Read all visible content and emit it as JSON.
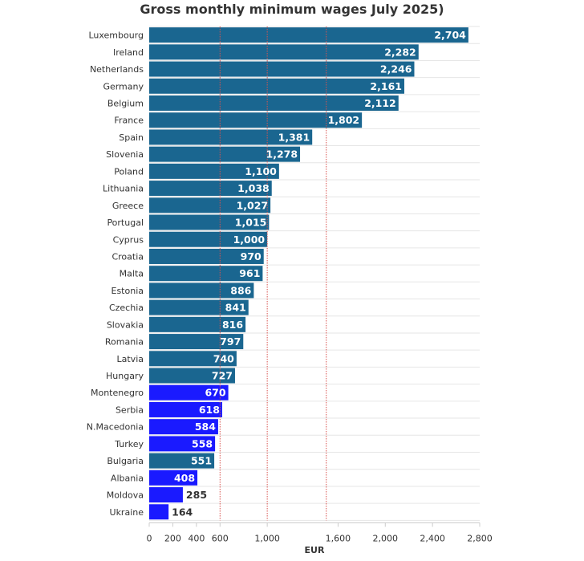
{
  "chart_data": {
    "type": "bar",
    "orientation": "horizontal",
    "title": "Gross monthly minimum wages July 2025)",
    "xlabel": "EUR",
    "xlim": [
      0,
      2800
    ],
    "x_ticks": [
      0,
      200,
      400,
      600,
      1000,
      1600,
      2000,
      2400,
      2800
    ],
    "x_tick_labels": [
      "0",
      "200",
      "400",
      "600",
      "1,000",
      "1,600",
      "2,000",
      "2,400",
      "2,800"
    ],
    "reference_lines": [
      600,
      1000,
      1500
    ],
    "grid": true,
    "categories": [
      "Luxembourg",
      "Ireland",
      "Netherlands",
      "Germany",
      "Belgium",
      "France",
      "Spain",
      "Slovenia",
      "Poland",
      "Lithuania",
      "Greece",
      "Portugal",
      "Cyprus",
      "Croatia",
      "Malta",
      "Estonia",
      "Czechia",
      "Slovakia",
      "Romania",
      "Latvia",
      "Hungary",
      "Montenegro",
      "Serbia",
      "N.Macedonia",
      "Turkey",
      "Bulgaria",
      "Albania",
      "Moldova",
      "Ukraine"
    ],
    "values": [
      2704,
      2282,
      2246,
      2161,
      2112,
      1802,
      1381,
      1278,
      1100,
      1038,
      1027,
      1015,
      1000,
      970,
      961,
      886,
      841,
      816,
      797,
      740,
      727,
      670,
      618,
      584,
      558,
      551,
      408,
      285,
      164
    ],
    "value_labels": [
      "2,704",
      "2,282",
      "2,246",
      "2,161",
      "2,112",
      "1,802",
      "1,381",
      "1,278",
      "1,100",
      "1,038",
      "1,027",
      "1,015",
      "1,000",
      "970",
      "961",
      "886",
      "841",
      "816",
      "797",
      "740",
      "727",
      "670",
      "618",
      "584",
      "558",
      "551",
      "408",
      "285",
      "164"
    ],
    "groups": [
      "eu",
      "eu",
      "eu",
      "eu",
      "eu",
      "eu",
      "eu",
      "eu",
      "eu",
      "eu",
      "eu",
      "eu",
      "eu",
      "eu",
      "eu",
      "eu",
      "eu",
      "eu",
      "eu",
      "eu",
      "eu",
      "other",
      "other",
      "other",
      "other",
      "eu",
      "other",
      "other",
      "other"
    ],
    "colors": {
      "eu": "#1a6690",
      "other": "#1a1aff",
      "reference": "#d9534f",
      "grid": "#e6e6e6",
      "label_light": "#ffffff",
      "label_dark": "#333333"
    }
  }
}
